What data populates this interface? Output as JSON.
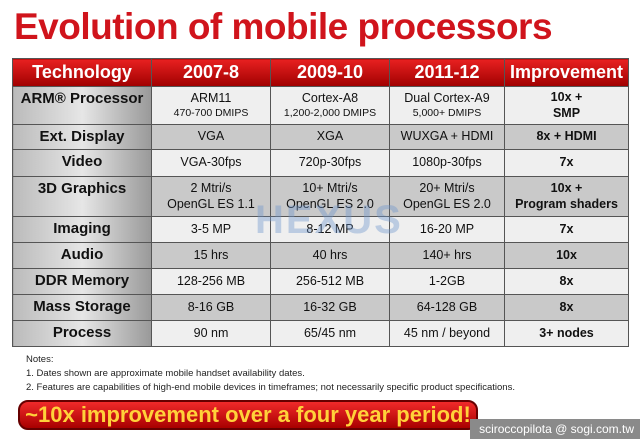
{
  "title": "Evolution of mobile processors",
  "headers": [
    "Technology",
    "2007-8",
    "2009-10",
    "2011-12",
    "Improvement"
  ],
  "rows": [
    {
      "label": "ARM® Processor",
      "c1": "ARM11",
      "c1s": "470-700 DMIPS",
      "c2": "Cortex-A8",
      "c2s": "1,200-2,000 DMIPS",
      "c3": "Dual Cortex-A9",
      "c3s": "5,000+ DMIPS",
      "imp": "10x +",
      "imps": "SMP"
    },
    {
      "label": "Ext. Display",
      "c1": "VGA",
      "c2": "XGA",
      "c3": "WUXGA + HDMI",
      "imp": "8x + HDMI"
    },
    {
      "label": "Video",
      "c1": "VGA-30fps",
      "c2": "720p-30fps",
      "c3": "1080p-30fps",
      "imp": "7x"
    },
    {
      "label": "3D Graphics",
      "c1": "2 Mtri/s",
      "c1s": "OpenGL ES 1.1",
      "c2": "10+ Mtri/s",
      "c2s": "OpenGL ES 2.0",
      "c3": "20+ Mtri/s",
      "c3s": "OpenGL ES 2.0",
      "imp": "10x +",
      "imps": "Program shaders"
    },
    {
      "label": "Imaging",
      "c1": "3-5 MP",
      "c2": "8-12 MP",
      "c3": "16-20 MP",
      "imp": "7x"
    },
    {
      "label": "Audio",
      "c1": "15 hrs",
      "c2": "40 hrs",
      "c3": "140+ hrs",
      "imp": "10x"
    },
    {
      "label": "DDR Memory",
      "c1": "128-256 MB",
      "c2": "256-512 MB",
      "c3": "1-2GB",
      "imp": "8x"
    },
    {
      "label": "Mass Storage",
      "c1": "8-16 GB",
      "c2": "16-32 GB",
      "c3": "64-128 GB",
      "imp": "8x"
    },
    {
      "label": "Process",
      "c1": "90 nm",
      "c2": "65/45 nm",
      "c3": "45 nm / beyond",
      "imp": "3+ nodes"
    }
  ],
  "watermark": "HEXUS",
  "notes": [
    "Notes:",
    "1. Dates shown are approximate mobile handset availability dates.",
    "2. Features are capabilities of high-end mobile devices in timeframes; not necessarily specific product specifications."
  ],
  "banner": "~10x improvement over a four year period!",
  "credit": "sciroccopilota  @ sogi.com.tw"
}
